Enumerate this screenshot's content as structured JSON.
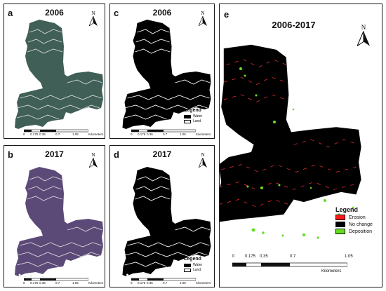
{
  "panels": {
    "a": {
      "label": "a",
      "title": "2006"
    },
    "b": {
      "label": "b",
      "title": "2017"
    },
    "c": {
      "label": "c",
      "title": "2006"
    },
    "d": {
      "label": "d",
      "title": "2017"
    },
    "e": {
      "label": "e",
      "title": "2006-2017"
    }
  },
  "north_label": "N",
  "legend_small": {
    "title": "Legend",
    "items": [
      {
        "label": "Water",
        "color": "#000000"
      },
      {
        "label": "Land",
        "color": "#ffffff"
      }
    ]
  },
  "legend_change": {
    "title": "Legend",
    "items": [
      {
        "label": "Erosion",
        "color": "#ff1a1a"
      },
      {
        "label": "No change",
        "color": "#000000"
      },
      {
        "label": "Deposition",
        "color": "#66dd22"
      }
    ]
  },
  "scale_bar": {
    "ticks": [
      "0",
      "0.175",
      "0.35",
      "0.7",
      "1.05"
    ],
    "unit": "Kilometers"
  },
  "colors": {
    "rgb_2006": "#3f5f57",
    "rgb_2017": "#5b4a78",
    "water": "#000000",
    "erosion": "#ff1a1a",
    "deposition": "#66dd22"
  }
}
